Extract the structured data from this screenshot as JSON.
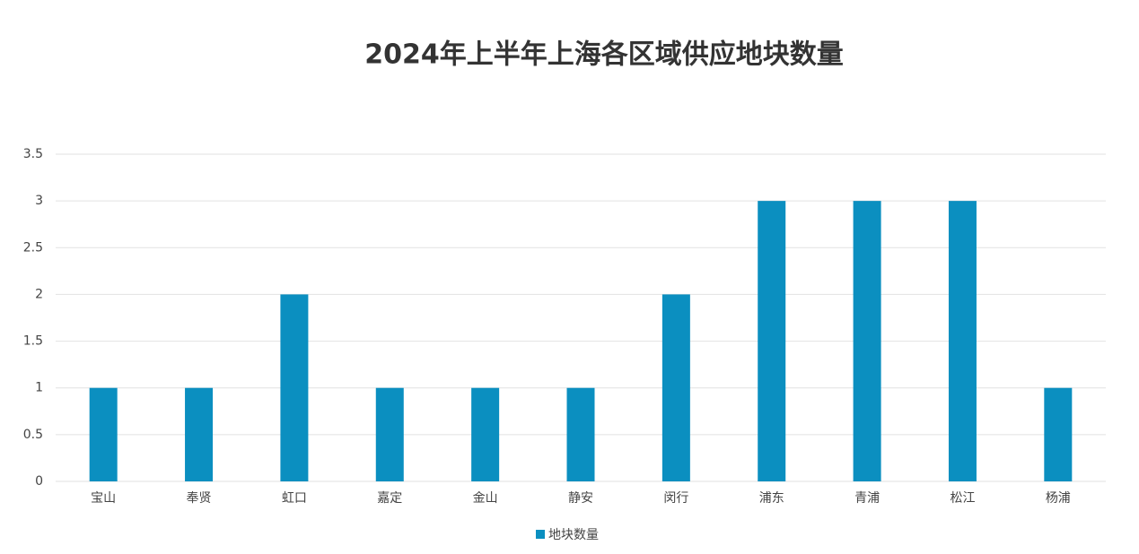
{
  "chart_data": {
    "type": "bar",
    "title": "2024年上半年上海各区域供应地块数量",
    "categories": [
      "宝山",
      "奉贤",
      "虹口",
      "嘉定",
      "金山",
      "静安",
      "闵行",
      "浦东",
      "青浦",
      "松江",
      "杨浦"
    ],
    "series": [
      {
        "name": "地块数量",
        "color": "#0b8fc0",
        "values": [
          1,
          1,
          2,
          1,
          1,
          1,
          2,
          3,
          3,
          3,
          1
        ]
      }
    ],
    "ylim": [
      0,
      3.5
    ],
    "yticks": [
      0,
      0.5,
      1,
      1.5,
      2,
      2.5,
      3,
      3.5
    ],
    "grid": true,
    "legend": "bottom"
  }
}
